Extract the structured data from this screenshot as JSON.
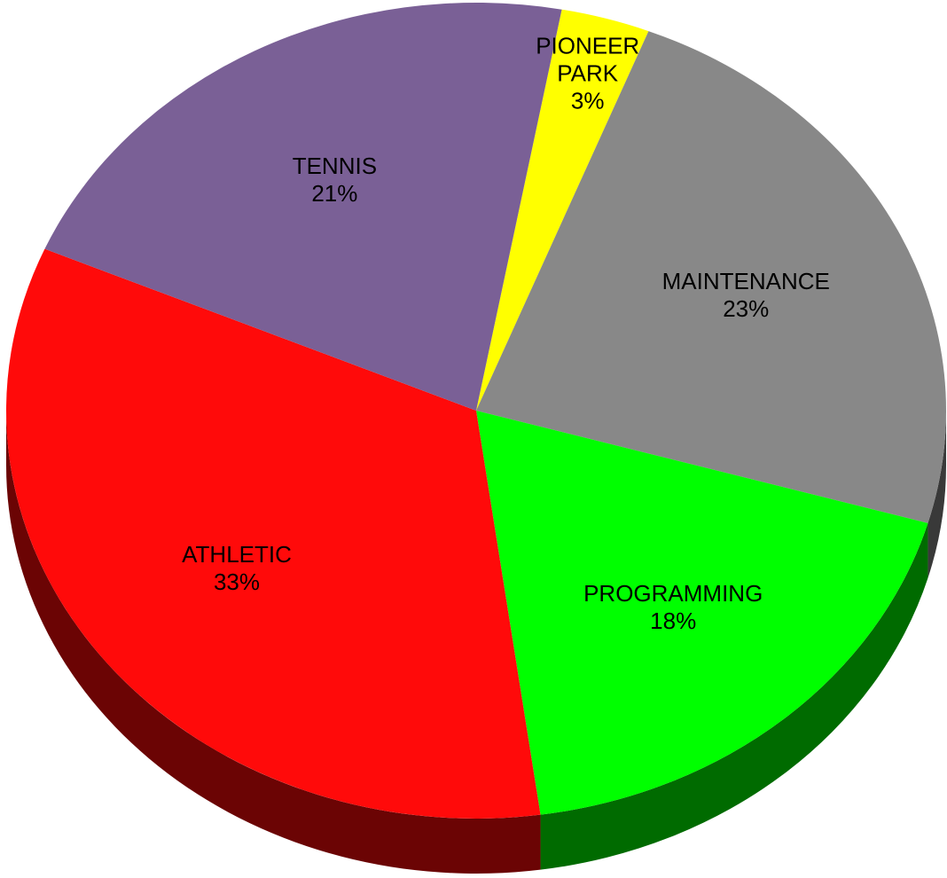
{
  "chart_data": {
    "type": "pie",
    "categories": [
      "PIONEER PARK",
      "MAINTENANCE",
      "PROGRAMMING",
      "ATHLETIC",
      "TENNIS"
    ],
    "values": [
      3,
      23,
      18,
      33,
      21
    ],
    "value_labels": [
      "3%",
      "23%",
      "18%",
      "33%",
      "21%"
    ],
    "colors": [
      "#ffff00",
      "#888888",
      "#00ff00",
      "#ff0a0a",
      "#7a6096"
    ]
  }
}
